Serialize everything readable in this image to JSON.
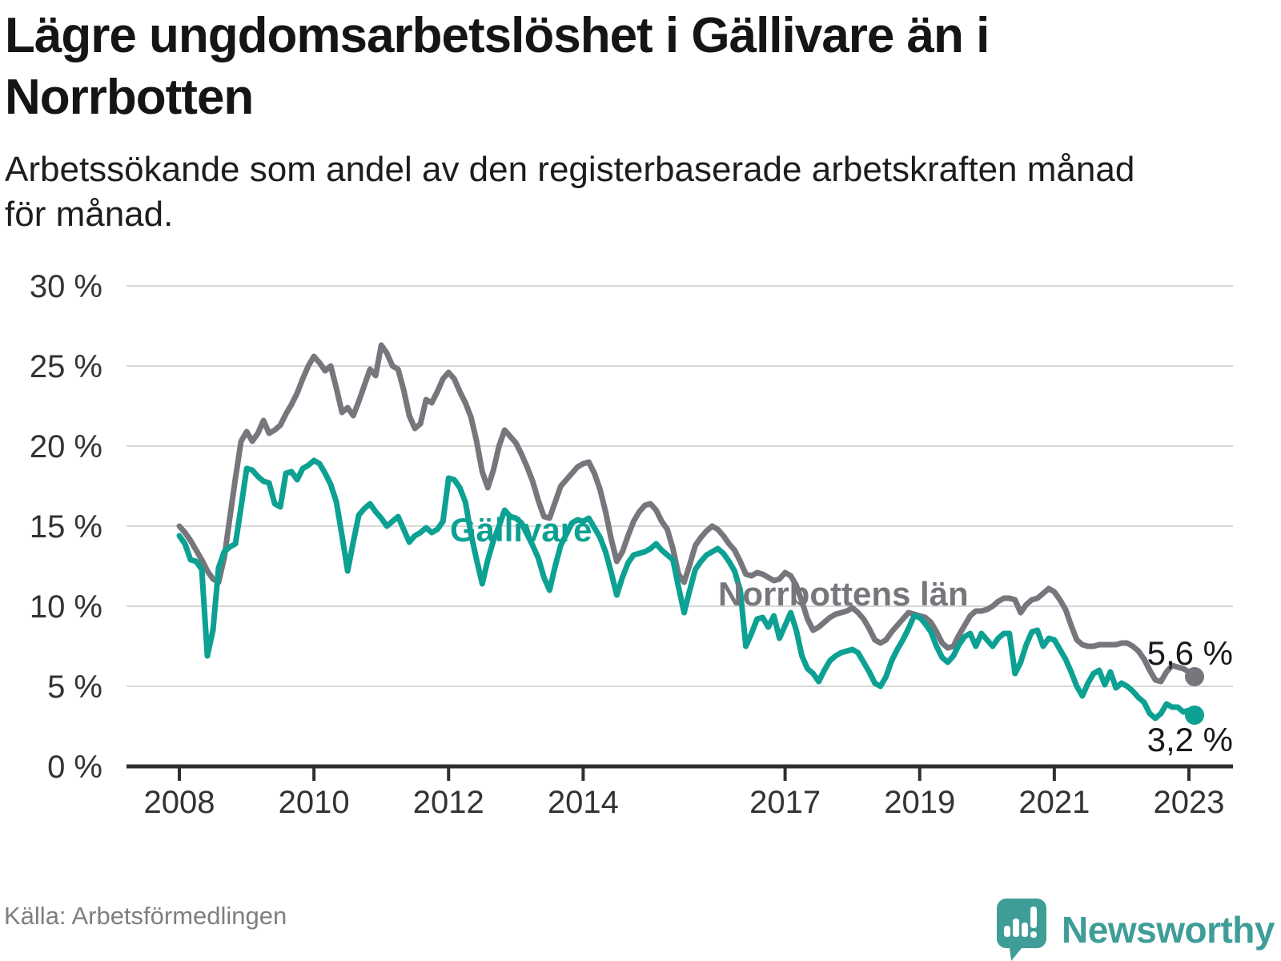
{
  "header": {
    "title_line1": "Lägre ungdomsarbetslöshet i Gällivare än i",
    "title_line2": "Norrbotten",
    "subtitle_line1": "Arbetssökande som andel av den registerbaserade arbetskraften månad",
    "subtitle_line2": "för månad."
  },
  "footer": {
    "source": "Källa: Arbetsförmedlingen",
    "brand": "Newsworthy",
    "brand_color": "#3f9d97"
  },
  "chart_data": {
    "type": "line",
    "unit": "%",
    "x_start": "2008-01",
    "x_end": "2023-02",
    "points_per_series": 182,
    "ylim": [
      0,
      30
    ],
    "grid": "horizontal",
    "y_ticks": [
      0,
      5,
      10,
      15,
      20,
      25,
      30
    ],
    "y_tick_labels": [
      "0 %",
      "5 %",
      "10 %",
      "15 %",
      "20 %",
      "25 %",
      "30 %"
    ],
    "x_tick_years": [
      2008,
      2010,
      2012,
      2014,
      2017,
      2019,
      2021,
      2023
    ],
    "x_tick_labels": [
      "2008",
      "2010",
      "2012",
      "2014",
      "2017",
      "2019",
      "2021",
      "2023"
    ],
    "colors": {
      "gridline": "#d8d8d8",
      "axis": "#2f2f2f",
      "tick_text": "#333333"
    },
    "series": [
      {
        "name": "Norrbottens län",
        "color": "#76767c",
        "end_label": "5,6 %",
        "end_value": 5.6,
        "values": [
          15.0,
          14.6,
          14.1,
          13.5,
          12.9,
          12.2,
          11.7,
          11.5,
          13.0,
          15.5,
          18.0,
          20.3,
          20.9,
          20.3,
          20.8,
          21.6,
          20.8,
          21.0,
          21.3,
          22.0,
          22.6,
          23.3,
          24.2,
          25.0,
          25.6,
          25.2,
          24.7,
          25.0,
          23.6,
          22.1,
          22.4,
          21.9,
          22.8,
          23.8,
          24.8,
          24.4,
          26.3,
          25.8,
          25.0,
          24.8,
          23.5,
          21.9,
          21.1,
          21.4,
          22.9,
          22.7,
          23.4,
          24.2,
          24.6,
          24.2,
          23.4,
          22.7,
          21.8,
          20.3,
          18.4,
          17.4,
          18.5,
          20.0,
          21.0,
          20.6,
          20.2,
          19.5,
          18.7,
          17.8,
          16.6,
          15.6,
          15.5,
          16.5,
          17.5,
          17.9,
          18.3,
          18.7,
          18.9,
          19.0,
          18.3,
          17.3,
          15.9,
          14.2,
          12.8,
          13.4,
          14.4,
          15.3,
          15.9,
          16.3,
          16.4,
          16.0,
          15.3,
          14.8,
          13.6,
          12.0,
          11.5,
          12.6,
          13.8,
          14.3,
          14.7,
          15.0,
          14.8,
          14.4,
          13.9,
          13.5,
          12.8,
          12.0,
          11.9,
          12.1,
          12.0,
          11.8,
          11.6,
          11.7,
          12.1,
          11.9,
          11.3,
          10.3,
          9.2,
          8.5,
          8.7,
          9.0,
          9.3,
          9.5,
          9.6,
          9.7,
          9.9,
          9.6,
          9.2,
          8.6,
          7.9,
          7.7,
          7.9,
          8.4,
          8.8,
          9.2,
          9.6,
          9.5,
          9.4,
          9.3,
          9.0,
          8.4,
          7.7,
          7.4,
          7.5,
          8.2,
          8.8,
          9.4,
          9.7,
          9.7,
          9.8,
          10.0,
          10.3,
          10.5,
          10.5,
          10.4,
          9.6,
          10.1,
          10.4,
          10.5,
          10.8,
          11.1,
          10.9,
          10.4,
          9.8,
          8.8,
          7.9,
          7.6,
          7.5,
          7.5,
          7.6,
          7.6,
          7.6,
          7.6,
          7.7,
          7.7,
          7.5,
          7.2,
          6.7,
          6.0,
          5.4,
          5.3,
          5.9,
          6.3,
          6.2,
          6.1,
          5.9,
          5.6
        ]
      },
      {
        "name": "Gällivare",
        "color": "#0ca192",
        "end_label": "3,2 %",
        "end_value": 3.2,
        "values": [
          14.4,
          13.9,
          12.9,
          12.8,
          12.3,
          6.9,
          8.5,
          12.4,
          13.4,
          13.7,
          13.9,
          16.2,
          18.6,
          18.5,
          18.1,
          17.8,
          17.7,
          16.4,
          16.2,
          18.3,
          18.4,
          17.9,
          18.6,
          18.8,
          19.1,
          18.9,
          18.3,
          17.6,
          16.5,
          14.4,
          12.2,
          14.0,
          15.7,
          16.1,
          16.4,
          15.9,
          15.5,
          15.0,
          15.3,
          15.6,
          14.8,
          14.0,
          14.4,
          14.6,
          14.9,
          14.6,
          14.8,
          15.3,
          18.0,
          17.9,
          17.4,
          16.5,
          14.5,
          12.9,
          11.4,
          12.9,
          14.1,
          15.0,
          16.0,
          15.6,
          15.5,
          15.2,
          14.5,
          13.8,
          13.0,
          11.8,
          11.0,
          12.5,
          13.8,
          14.5,
          15.2,
          15.4,
          15.3,
          15.5,
          14.9,
          14.3,
          13.4,
          12.1,
          10.7,
          11.8,
          12.7,
          13.2,
          13.3,
          13.4,
          13.6,
          13.9,
          13.5,
          13.2,
          12.9,
          11.2,
          9.6,
          11.0,
          12.3,
          12.8,
          13.2,
          13.4,
          13.6,
          13.3,
          12.8,
          12.2,
          11.0,
          7.5,
          8.3,
          9.2,
          9.3,
          8.7,
          9.4,
          8.0,
          8.8,
          9.6,
          8.5,
          6.9,
          6.1,
          5.8,
          5.3,
          6.0,
          6.6,
          6.9,
          7.1,
          7.2,
          7.3,
          7.1,
          6.5,
          5.9,
          5.2,
          5.0,
          5.6,
          6.6,
          7.3,
          7.9,
          8.6,
          9.4,
          9.3,
          8.9,
          8.4,
          7.5,
          6.8,
          6.5,
          6.9,
          7.6,
          8.1,
          8.3,
          7.5,
          8.3,
          7.9,
          7.5,
          8.0,
          8.3,
          8.3,
          5.8,
          6.5,
          7.6,
          8.4,
          8.5,
          7.5,
          8.0,
          7.9,
          7.3,
          6.7,
          5.9,
          5.0,
          4.4,
          5.2,
          5.8,
          6.0,
          5.1,
          5.9,
          4.9,
          5.2,
          5.0,
          4.7,
          4.3,
          4.0,
          3.3,
          3.0,
          3.3,
          3.9,
          3.7,
          3.7,
          3.4,
          3.5,
          3.2
        ]
      }
    ],
    "legend_position": "inline-labels"
  }
}
